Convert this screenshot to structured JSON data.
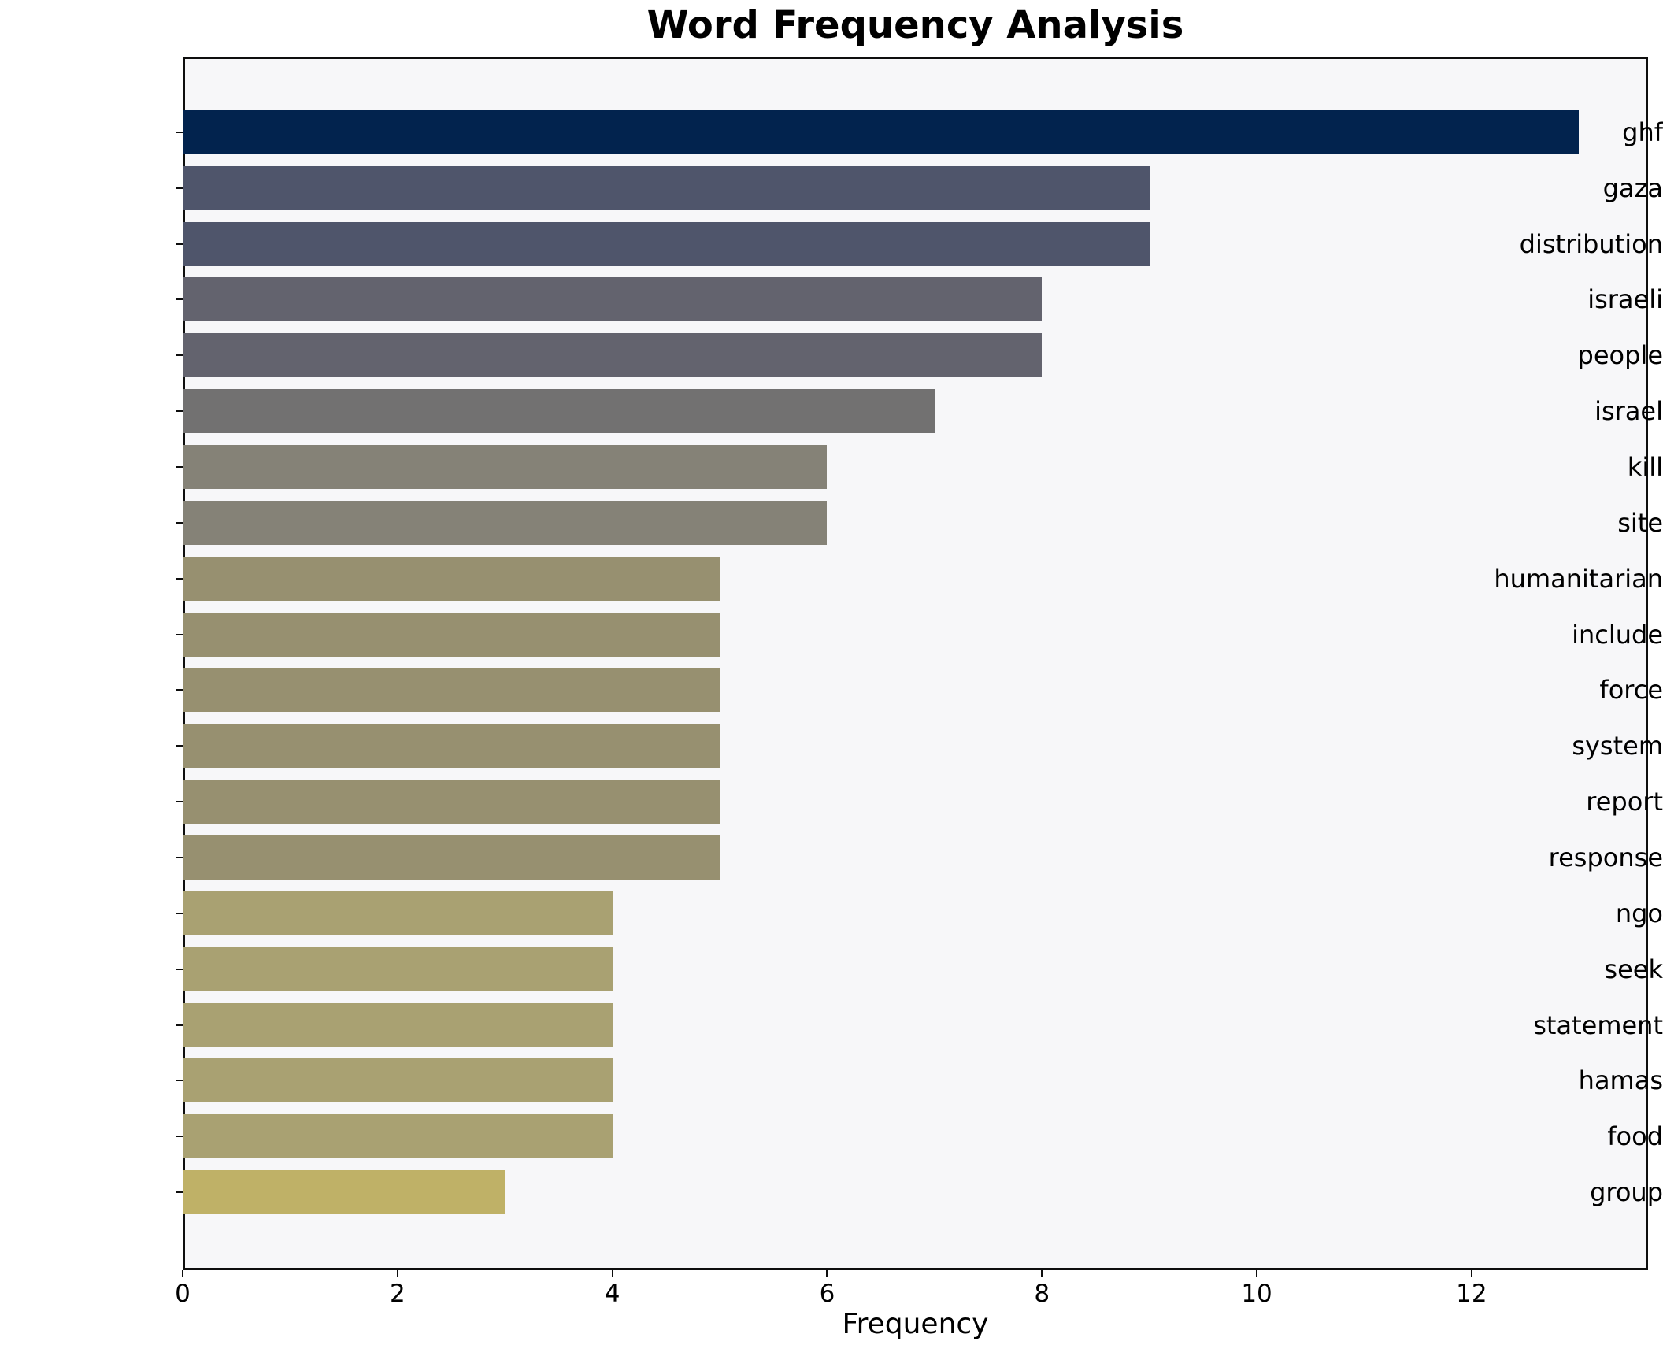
{
  "title": "Word Frequency Analysis",
  "colors": {
    "figure_background": "#ffffff",
    "plot_background": "#f7f7f9",
    "axis": "#0e0e0e",
    "text": "#000000"
  },
  "chart_data": {
    "type": "bar",
    "orientation": "horizontal",
    "title": "Word Frequency Analysis",
    "xlabel": "Frequency",
    "ylabel": "",
    "grid": false,
    "legend": false,
    "xlim": [
      0,
      13.643
    ],
    "xticks": [
      0,
      2,
      4,
      6,
      8,
      10,
      12
    ],
    "categories": [
      "ghf",
      "gaza",
      "distribution",
      "israeli",
      "people",
      "israel",
      "kill",
      "site",
      "humanitarian",
      "include",
      "force",
      "system",
      "report",
      "response",
      "ngo",
      "seek",
      "statement",
      "hamas",
      "food",
      "group"
    ],
    "values": [
      13,
      9,
      9,
      8,
      8,
      7,
      6,
      6,
      5,
      5,
      5,
      5,
      5,
      5,
      4,
      4,
      4,
      4,
      4,
      3
    ],
    "bar_colors": [
      "#02234e",
      "#4f556b",
      "#4f556b",
      "#63636e",
      "#63636e",
      "#727171",
      "#858277",
      "#858277",
      "#979070",
      "#979070",
      "#979070",
      "#979070",
      "#979070",
      "#979070",
      "#a9a172",
      "#a9a172",
      "#a9a172",
      "#a9a172",
      "#a9a172",
      "#bfb167"
    ]
  }
}
